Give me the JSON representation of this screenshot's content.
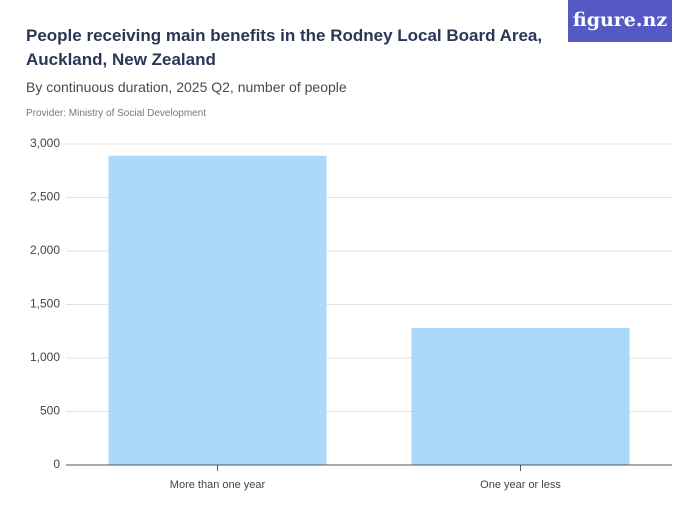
{
  "chart_data": {
    "type": "bar",
    "title": "People receiving main benefits in the Rodney Local Board Area, Auckland, New Zealand",
    "subtitle": "By continuous duration, 2025 Q2, number of people",
    "provider": "Provider: Ministry of Social Development",
    "logo": "figure.nz",
    "categories": [
      "More than one year",
      "One year or less"
    ],
    "values": [
      2890,
      1280
    ],
    "color": "#acd8fa",
    "ylim": [
      0,
      3000
    ],
    "yticks": [
      0,
      500,
      {
        "value": 1000,
        "label": "1,000"
      },
      {
        "value": 1500,
        "label": "1,500"
      },
      {
        "value": 2000,
        "label": "2,000"
      },
      {
        "value": 2500,
        "label": "2,500"
      },
      {
        "value": 3000,
        "label": "3,000"
      }
    ],
    "grid": true
  }
}
